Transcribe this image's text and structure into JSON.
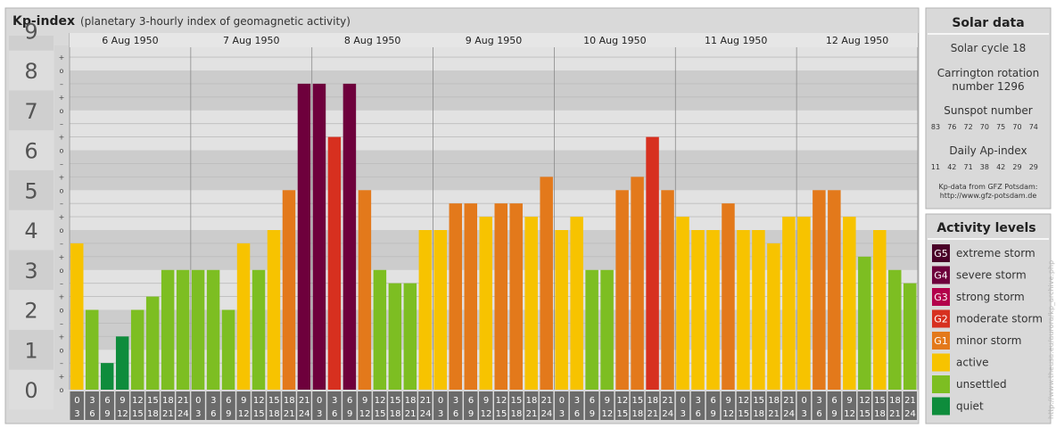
{
  "header": {
    "title": "Kp-index",
    "subtitle": "(planetary 3-hourly index of geomagnetic activity)"
  },
  "chart_data": {
    "type": "bar",
    "ylim": [
      0,
      9
    ],
    "y_ticks": [
      "0",
      "1",
      "2",
      "3",
      "4",
      "5",
      "6",
      "7",
      "8",
      "9"
    ],
    "y_minor_ticks": [
      "o",
      "+",
      "–"
    ],
    "days": [
      "6 Aug 1950",
      "7 Aug 1950",
      "8 Aug 1950",
      "9 Aug 1950",
      "10 Aug 1950",
      "11 Aug 1950",
      "12 Aug 1950"
    ],
    "time_slots": [
      {
        "start": "0",
        "end": "3"
      },
      {
        "start": "3",
        "end": "6"
      },
      {
        "start": "6",
        "end": "9"
      },
      {
        "start": "9",
        "end": "12"
      },
      {
        "start": "12",
        "end": "15"
      },
      {
        "start": "15",
        "end": "18"
      },
      {
        "start": "18",
        "end": "21"
      },
      {
        "start": "21",
        "end": "24"
      }
    ],
    "values": [
      [
        3.667,
        2.0,
        0.667,
        1.333,
        2.0,
        2.333,
        3.0,
        3.0
      ],
      [
        3.0,
        3.0,
        2.0,
        3.667,
        3.0,
        4.0,
        5.0,
        7.667
      ],
      [
        7.667,
        6.333,
        7.667,
        5.0,
        3.0,
        2.667,
        2.667,
        4.0
      ],
      [
        4.0,
        4.667,
        4.667,
        4.333,
        4.667,
        4.667,
        4.333,
        5.333
      ],
      [
        4.0,
        4.333,
        3.0,
        3.0,
        5.0,
        5.333,
        6.333,
        5.0
      ],
      [
        4.333,
        4.0,
        4.0,
        4.667,
        4.0,
        4.0,
        3.667,
        4.333
      ],
      [
        4.333,
        5.0,
        5.0,
        4.333,
        3.333,
        4.0,
        3.0,
        2.667
      ]
    ],
    "colors": {
      "quiet": "#0e8c3c",
      "unsettled": "#7dbe22",
      "active": "#f7c300",
      "minor": "#e3791b",
      "moderate": "#d7301f",
      "strong": "#b3004b",
      "severe": "#6e003c",
      "extreme": "#4a0028"
    }
  },
  "solar_data": {
    "heading": "Solar data",
    "solar_cycle": "Solar cycle 18",
    "carrington_line1": "Carrington rotation",
    "carrington_line2": "number 1296",
    "sunspot_heading": "Sunspot number",
    "sunspot_values": [
      "83",
      "76",
      "72",
      "70",
      "75",
      "70",
      "74"
    ],
    "ap_heading": "Daily Ap-index",
    "ap_values": [
      "11",
      "42",
      "71",
      "38",
      "42",
      "29",
      "29"
    ],
    "source_line1": "Kp-data from GFZ Potsdam:",
    "source_line2": "http://www.gfz-potsdam.de"
  },
  "activity_levels": {
    "heading": "Activity levels",
    "items": [
      {
        "badge": "G5",
        "label": "extreme storm",
        "color": "#4a0028"
      },
      {
        "badge": "G4",
        "label": "severe storm",
        "color": "#6e003c"
      },
      {
        "badge": "G3",
        "label": "strong storm",
        "color": "#b3004b"
      },
      {
        "badge": "G2",
        "label": "moderate storm",
        "color": "#d7301f"
      },
      {
        "badge": "G1",
        "label": "minor storm",
        "color": "#e3791b"
      },
      {
        "badge": "",
        "label": "active",
        "color": "#f7c300"
      },
      {
        "badge": "",
        "label": "unsettled",
        "color": "#7dbe22"
      },
      {
        "badge": "",
        "label": "quiet",
        "color": "#0e8c3c"
      }
    ]
  },
  "watermark": "http://www.theusa.eu/aurora/kp_archive.php"
}
